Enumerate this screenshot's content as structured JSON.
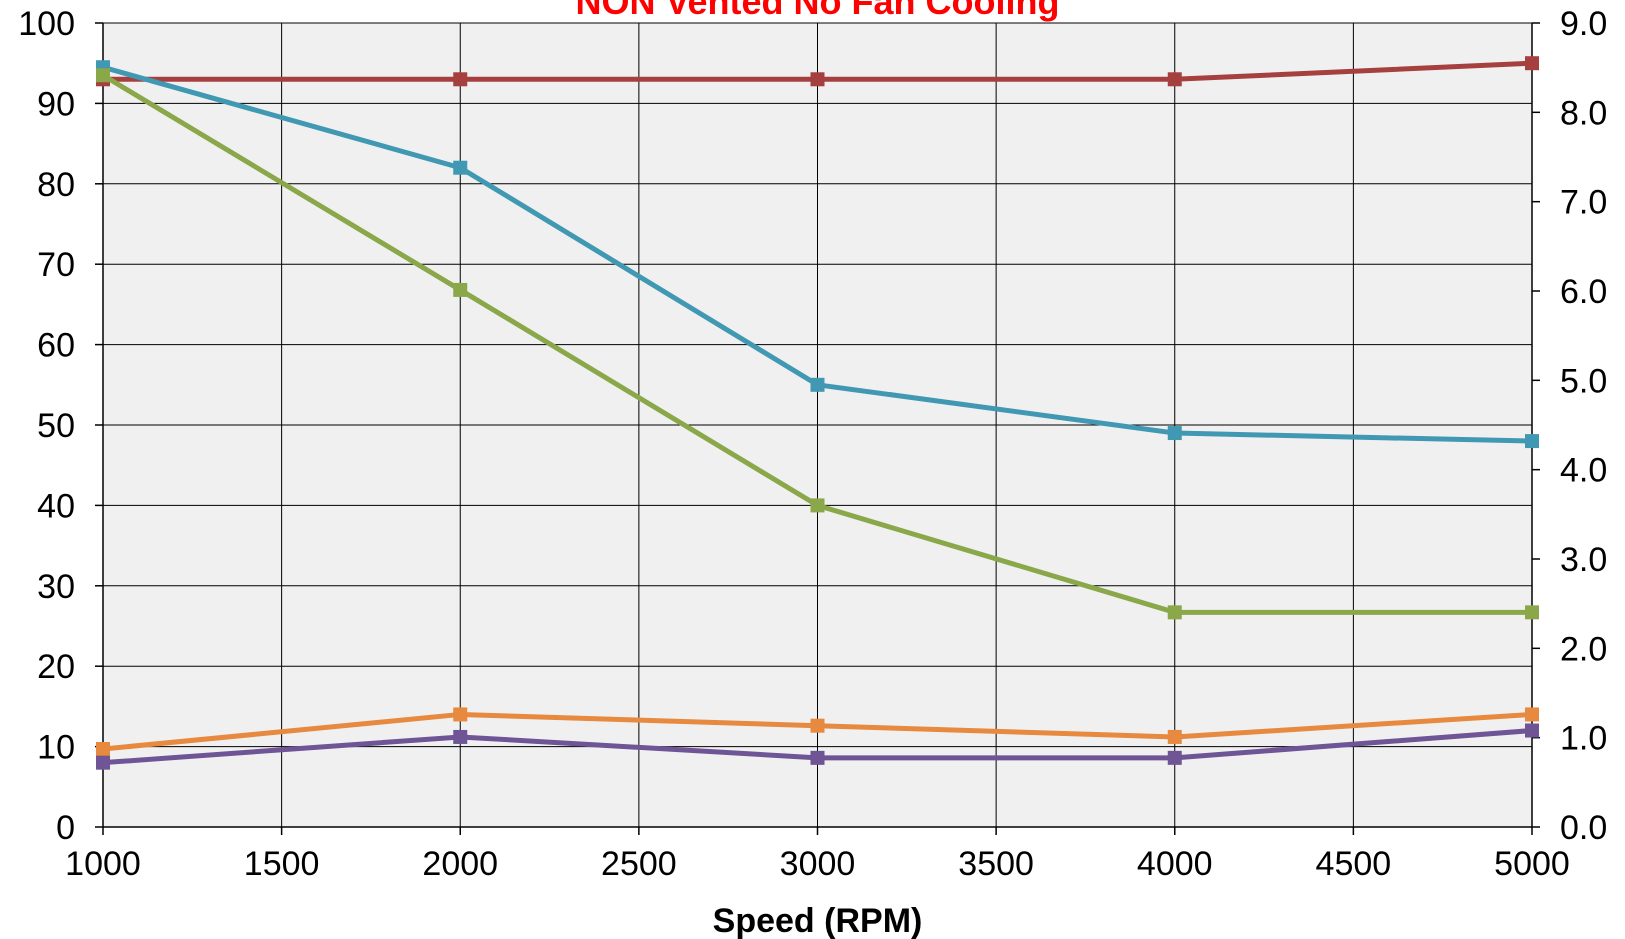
{
  "chart_data": {
    "type": "line",
    "title": "NON Vented No Fan Cooling",
    "xlabel": "Speed (RPM)",
    "ylabel": "",
    "ylabel_right": "",
    "x_ticks": [
      "1000",
      "1500",
      "2000",
      "2500",
      "3000",
      "3500",
      "4000",
      "4500",
      "5000"
    ],
    "y_ticks": [
      "0",
      "10",
      "20",
      "30",
      "40",
      "50",
      "60",
      "70",
      "80",
      "90",
      "100"
    ],
    "y2_ticks": [
      "0.0",
      "1.0",
      "2.0",
      "3.0",
      "4.0",
      "5.0",
      "6.0",
      "7.0",
      "8.0",
      "9.0"
    ],
    "xlim": [
      1000,
      5000
    ],
    "ylim": [
      0,
      100
    ],
    "y2lim": [
      0,
      9
    ],
    "grid": true,
    "legend": "none",
    "plot_background": "#f0f0f0",
    "title_color": "#ff0000",
    "series": [
      {
        "color": "#a5403f",
        "axis": "left",
        "x": [
          1000,
          2000,
          3000,
          4000,
          5000
        ],
        "y": [
          93,
          93,
          93,
          93,
          95
        ]
      },
      {
        "color": "#4198b2",
        "axis": "left",
        "x": [
          1000,
          2000,
          3000,
          4000,
          5000
        ],
        "y": [
          94.5,
          82,
          55,
          49,
          48
        ]
      },
      {
        "color": "#8aa84a",
        "axis": "left",
        "x": [
          1000,
          2000,
          3000,
          4000,
          5000
        ],
        "y": [
          93.5,
          66.8,
          40,
          26.7,
          26.7
        ]
      },
      {
        "color": "#e7893e",
        "axis": "left",
        "x": [
          1000,
          2000,
          3000,
          4000,
          5000
        ],
        "y": [
          9.7,
          14,
          12.6,
          11.2,
          14
        ]
      },
      {
        "color": "#6f5496",
        "axis": "left",
        "x": [
          1000,
          2000,
          3000,
          4000,
          5000
        ],
        "y": [
          8,
          11.2,
          8.6,
          8.6,
          12
        ]
      }
    ]
  }
}
